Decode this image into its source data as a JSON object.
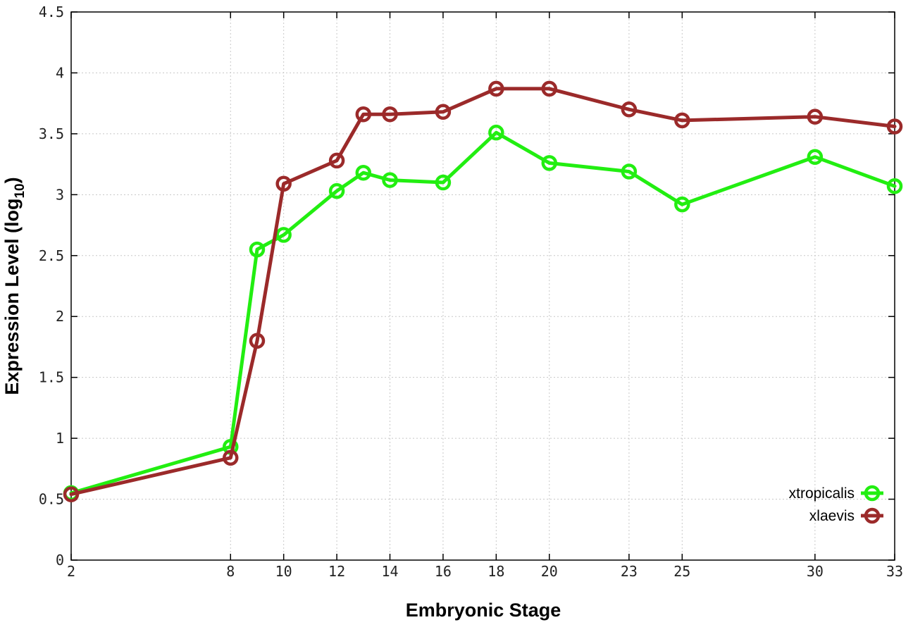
{
  "chart_data": {
    "type": "line",
    "xlabel": "Embryonic Stage",
    "ylabel_main": "Expression Level (log",
    "ylabel_sub": "10",
    "ylabel_close": ")",
    "xlim": [
      2,
      33
    ],
    "ylim": [
      0,
      4.5
    ],
    "x_ticks": [
      2,
      8,
      10,
      12,
      14,
      16,
      18,
      20,
      23,
      25,
      30,
      33
    ],
    "x_tick_labels": [
      "2",
      "8",
      "10",
      "12",
      "14",
      "16",
      "18",
      "20",
      "23",
      "25",
      "30",
      "33"
    ],
    "y_ticks": [
      0,
      0.5,
      1,
      1.5,
      2,
      2.5,
      3,
      3.5,
      4,
      4.5
    ],
    "y_tick_labels": [
      "0",
      "0.5",
      "1",
      "1.5",
      "2",
      "2.5",
      "3",
      "3.5",
      "4",
      "4.5"
    ],
    "grid": true,
    "legend_position": "bottom-right",
    "series": [
      {
        "name": "xtropicalis",
        "color": "#22ee11",
        "x": [
          2,
          8,
          9,
          10,
          12,
          13,
          14,
          16,
          18,
          20,
          23,
          25,
          30,
          33
        ],
        "y": [
          0.55,
          0.93,
          2.55,
          2.67,
          3.03,
          3.18,
          3.12,
          3.1,
          3.51,
          3.26,
          3.19,
          2.92,
          3.31,
          3.07
        ]
      },
      {
        "name": "xlaevis",
        "color": "#9b2a2a",
        "x": [
          2,
          8,
          9,
          10,
          12,
          13,
          14,
          16,
          18,
          20,
          23,
          25,
          30,
          33
        ],
        "y": [
          0.54,
          0.84,
          1.8,
          3.09,
          3.28,
          3.66,
          3.66,
          3.68,
          3.87,
          3.87,
          3.7,
          3.61,
          3.64,
          3.56
        ]
      }
    ]
  }
}
